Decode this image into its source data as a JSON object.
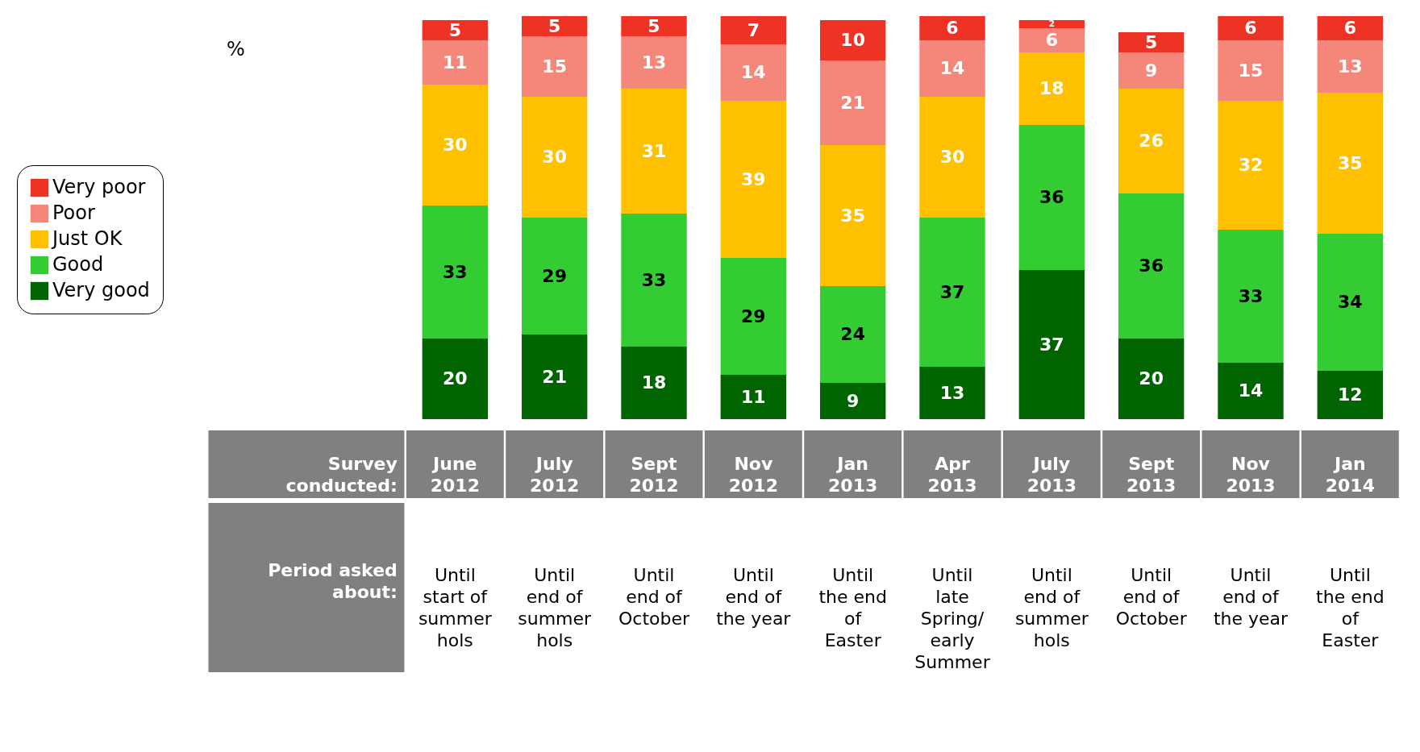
{
  "chart_data": {
    "type": "bar",
    "stacked": true,
    "data_labels": true,
    "legend": "left",
    "xlabel": "Survey conducted:",
    "categories": [
      "June 2012",
      "July 2012",
      "Sept 2012",
      "Nov 2012",
      "Jan 2013",
      "Apr 2013",
      "July 2013",
      "Sept 2013",
      "Nov 2013",
      "Jan 2014"
    ],
    "series": [
      {
        "name": "Very good",
        "color": "#006400",
        "values": [
          20,
          21,
          18,
          11,
          9,
          13,
          37,
          20,
          14,
          12
        ]
      },
      {
        "name": "Good",
        "color": "#33cc33",
        "values": [
          33,
          29,
          33,
          29,
          24,
          37,
          36,
          36,
          33,
          34
        ]
      },
      {
        "name": "Just OK",
        "color": "#ffc000",
        "values": [
          30,
          30,
          31,
          39,
          35,
          30,
          18,
          26,
          32,
          35
        ]
      },
      {
        "name": "Poor",
        "color": "#f4877a",
        "values": [
          11,
          15,
          13,
          14,
          21,
          14,
          6,
          9,
          15,
          13
        ]
      },
      {
        "name": "Very poor",
        "color": "#ee3224",
        "values": [
          5,
          5,
          5,
          7,
          10,
          6,
          2,
          5,
          6,
          6
        ]
      }
    ],
    "annotations": [
      "%",
      "Period asked about:",
      "Until start of summer hols",
      "Until end of summer hols",
      "Until end of October",
      "Until end of the year",
      "Until the end of Easter",
      "Until late Spring/ early Summer",
      "Until end of summer hols",
      "Until end of October",
      "Until end of the year",
      "Until the end of Easter"
    ]
  }
}
